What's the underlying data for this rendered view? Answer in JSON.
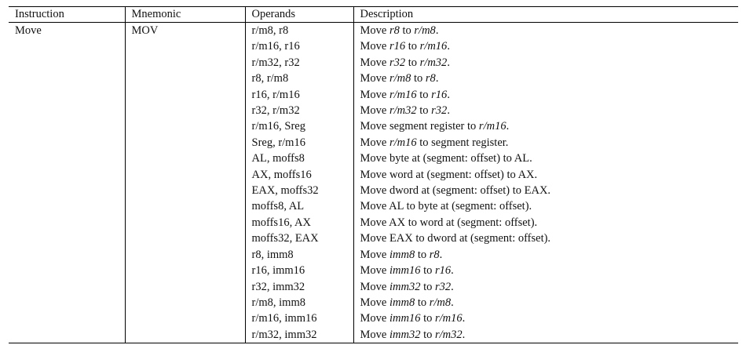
{
  "table": {
    "headers": [
      "Instruction",
      "Mnemonic",
      "Operands",
      "Description"
    ],
    "instruction": "Move",
    "mnemonic": "MOV",
    "rows": [
      {
        "operands": "r/m8, r8",
        "desc": [
          {
            "t": "Move "
          },
          {
            "t": "r8",
            "i": true
          },
          {
            "t": " to "
          },
          {
            "t": "r/m8",
            "i": true
          },
          {
            "t": "."
          }
        ]
      },
      {
        "operands": "r/m16, r16",
        "desc": [
          {
            "t": "Move "
          },
          {
            "t": "r16",
            "i": true
          },
          {
            "t": " to "
          },
          {
            "t": "r/m16",
            "i": true
          },
          {
            "t": "."
          }
        ]
      },
      {
        "operands": "r/m32, r32",
        "desc": [
          {
            "t": "Move "
          },
          {
            "t": "r32",
            "i": true
          },
          {
            "t": " to "
          },
          {
            "t": "r/m32",
            "i": true
          },
          {
            "t": "."
          }
        ]
      },
      {
        "operands": "r8, r/m8",
        "desc": [
          {
            "t": "Move "
          },
          {
            "t": "r/m8",
            "i": true
          },
          {
            "t": " to "
          },
          {
            "t": "r8",
            "i": true
          },
          {
            "t": "."
          }
        ]
      },
      {
        "operands": "r16, r/m16",
        "desc": [
          {
            "t": "Move "
          },
          {
            "t": "r/m16",
            "i": true
          },
          {
            "t": " to "
          },
          {
            "t": "r16",
            "i": true
          },
          {
            "t": "."
          }
        ]
      },
      {
        "operands": "r32, r/m32",
        "desc": [
          {
            "t": "Move "
          },
          {
            "t": "r/m32",
            "i": true
          },
          {
            "t": " to "
          },
          {
            "t": "r32",
            "i": true
          },
          {
            "t": "."
          }
        ]
      },
      {
        "operands": "r/m16, Sreg",
        "desc": [
          {
            "t": "Move segment register to "
          },
          {
            "t": "r/m16",
            "i": true
          },
          {
            "t": "."
          }
        ]
      },
      {
        "operands": "Sreg, r/m16",
        "desc": [
          {
            "t": "Move "
          },
          {
            "t": "r/m16",
            "i": true
          },
          {
            "t": " to segment register."
          }
        ]
      },
      {
        "operands": "AL, moffs8",
        "desc": [
          {
            "t": "Move byte at (segment: offset) to AL."
          }
        ]
      },
      {
        "operands": "AX, moffs16",
        "desc": [
          {
            "t": "Move word at (segment: offset) to AX."
          }
        ]
      },
      {
        "operands": "EAX, moffs32",
        "desc": [
          {
            "t": "Move dword at (segment: offset) to EAX."
          }
        ]
      },
      {
        "operands": "moffs8, AL",
        "desc": [
          {
            "t": "Move AL to byte at (segment: offset)."
          }
        ]
      },
      {
        "operands": "moffs16, AX",
        "desc": [
          {
            "t": "Move AX to word at (segment: offset)."
          }
        ]
      },
      {
        "operands": "moffs32, EAX",
        "desc": [
          {
            "t": "Move EAX to dword at (segment: offset)."
          }
        ]
      },
      {
        "operands": "r8, imm8",
        "desc": [
          {
            "t": "Move "
          },
          {
            "t": "imm8",
            "i": true
          },
          {
            "t": " to "
          },
          {
            "t": "r8",
            "i": true
          },
          {
            "t": "."
          }
        ]
      },
      {
        "operands": "r16, imm16",
        "desc": [
          {
            "t": "Move "
          },
          {
            "t": "imm16",
            "i": true
          },
          {
            "t": " to "
          },
          {
            "t": "r16",
            "i": true
          },
          {
            "t": "."
          }
        ]
      },
      {
        "operands": "r32, imm32",
        "desc": [
          {
            "t": "Move "
          },
          {
            "t": "imm32",
            "i": true
          },
          {
            "t": " to "
          },
          {
            "t": "r32",
            "i": true
          },
          {
            "t": "."
          }
        ]
      },
      {
        "operands": "r/m8, imm8",
        "desc": [
          {
            "t": "Move "
          },
          {
            "t": "imm8",
            "i": true
          },
          {
            "t": " to "
          },
          {
            "t": "r/m8",
            "i": true
          },
          {
            "t": "."
          }
        ]
      },
      {
        "operands": "r/m16, imm16",
        "desc": [
          {
            "t": "Move "
          },
          {
            "t": "imm16",
            "i": true
          },
          {
            "t": " to "
          },
          {
            "t": "r/m16",
            "i": true
          },
          {
            "t": "."
          }
        ]
      },
      {
        "operands": "r/m32, imm32",
        "desc": [
          {
            "t": "Move "
          },
          {
            "t": "imm32",
            "i": true
          },
          {
            "t": " to "
          },
          {
            "t": "r/m32",
            "i": true
          },
          {
            "t": "."
          }
        ]
      }
    ]
  }
}
